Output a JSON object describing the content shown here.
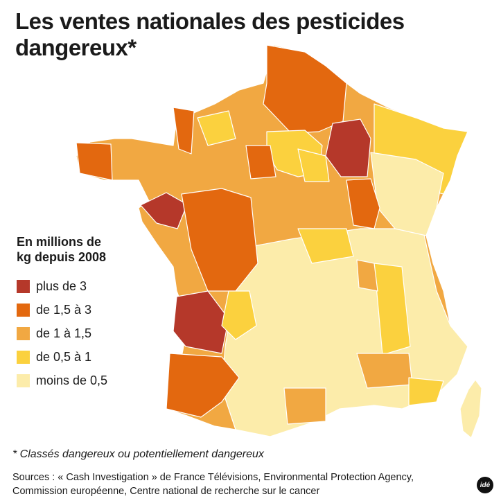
{
  "title": "Les ventes nationales des pesticides dangereux*",
  "legend": {
    "title": "En millions de kg depuis 2008",
    "items": [
      {
        "label": "plus de 3",
        "color": "#b5382a"
      },
      {
        "label": "de 1,5 à 3",
        "color": "#e3680f"
      },
      {
        "label": "de 1 à 1,5",
        "color": "#f1a842"
      },
      {
        "label": "de 0,5 à 1",
        "color": "#fbd13e"
      },
      {
        "label": "moins de 0,5",
        "color": "#fcecaa"
      }
    ]
  },
  "footnote": "* Classés dangereux ou potentiellement dangereux",
  "sources": "Sources : « Cash Investigation » de France Télévisions, Environmental Protection Agency, Commission européenne, Centre national de recherche sur le cancer",
  "logo": "idé"
}
